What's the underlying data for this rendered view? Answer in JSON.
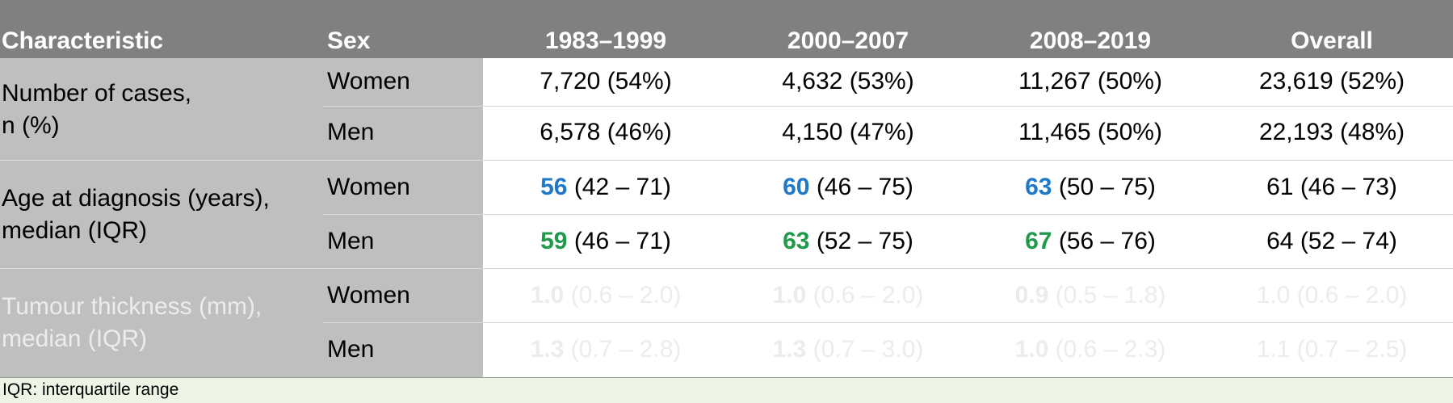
{
  "header": {
    "characteristic": "Characteristic",
    "sex": "Sex",
    "periods": [
      "1983–1999",
      "2000–2007",
      "2008–2019",
      "Overall"
    ]
  },
  "rows": {
    "cases": {
      "label_line1": "Number of cases,",
      "label_line2": "n (%)",
      "women": {
        "sex": "Women",
        "values": [
          "7,720 (54%)",
          "4,632 (53%)",
          "11,267 (50%)",
          "23,619 (52%)"
        ]
      },
      "men": {
        "sex": "Men",
        "values": [
          "6,578 (46%)",
          "4,150 (47%)",
          "11,465 (50%)",
          "22,193 (48%)"
        ]
      }
    },
    "age": {
      "label_line1": "Age at diagnosis (years),",
      "label_line2": "median (IQR)",
      "women": {
        "sex": "Women",
        "medians": [
          "56",
          "60",
          "63"
        ],
        "iqrs": [
          "(42 – 71)",
          "(46 – 75)",
          "(50 – 75)"
        ],
        "overall": "61 (46 – 73)"
      },
      "men": {
        "sex": "Men",
        "medians": [
          "59",
          "63",
          "67"
        ],
        "iqrs": [
          "(46 – 71)",
          "(52 – 75)",
          "(56 – 76)"
        ],
        "overall": "64 (52 – 74)"
      }
    },
    "thickness": {
      "label_line1": "Tumour thickness (mm),",
      "label_line2": "median (IQR)",
      "women": {
        "sex": "Women",
        "medians": [
          "1.0",
          "1.0",
          "0.9"
        ],
        "iqrs": [
          "(0.6 – 2.0)",
          "(0.6 – 2.0)",
          "(0.5 – 1.8)"
        ],
        "overall": "1.0 (0.6 – 2.0)"
      },
      "men": {
        "sex": "Men",
        "medians": [
          "1.3",
          "1.3",
          "1.0"
        ],
        "iqrs": [
          "(0.7 – 2.8)",
          "(0.7 – 3.0)",
          "(0.6 – 2.3)"
        ],
        "overall": "1.1 (0.7 – 2.5)"
      }
    }
  },
  "footnote": "IQR: interquartile range",
  "colors": {
    "header_bg": "#808080",
    "label_bg": "#bfbfbf",
    "women_median": "#1f78c8",
    "men_median": "#1e9a4a",
    "footnote_bg": "#eef5e6"
  }
}
